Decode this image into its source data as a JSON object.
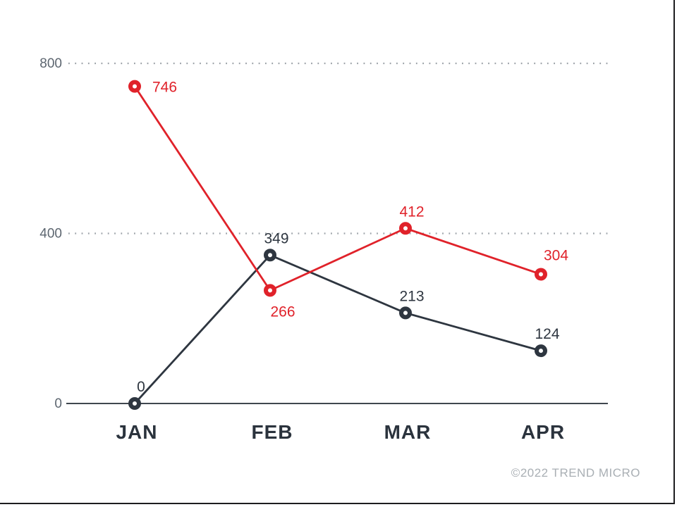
{
  "page": {
    "background": "#ffffff",
    "edge_color": "#1d1d1f"
  },
  "footer": {
    "copyright": "©2022 TREND MICRO",
    "color": "#a9afb4"
  },
  "chart_data": {
    "type": "line",
    "categories": [
      "JAN",
      "FEB",
      "MAR",
      "APR"
    ],
    "series": [
      {
        "name": "red-series",
        "color": "#e0222a",
        "values": [
          746,
          266,
          412,
          304
        ],
        "point_labels": [
          "746",
          "266",
          "412",
          "304"
        ],
        "label_positions": [
          "right",
          "below",
          "above",
          "above-right"
        ]
      },
      {
        "name": "dark-series",
        "color": "#2e3640",
        "values": [
          0,
          349,
          213,
          124
        ],
        "point_labels": [
          "0",
          "349",
          "213",
          "124"
        ],
        "label_positions": [
          "above",
          "above",
          "above",
          "above"
        ]
      }
    ],
    "yticks": [
      0,
      400,
      800
    ],
    "ylim": [
      0,
      800
    ],
    "grid": {
      "horizontal": true,
      "style": "dotted",
      "color": "#9ba1a7",
      "at": [
        400,
        800
      ]
    },
    "axis_color": "#40474f",
    "tick_label_color": "#5d6670",
    "category_label_color": "#2b333d",
    "legend": "none",
    "title": "",
    "xlabel": "",
    "ylabel": ""
  }
}
